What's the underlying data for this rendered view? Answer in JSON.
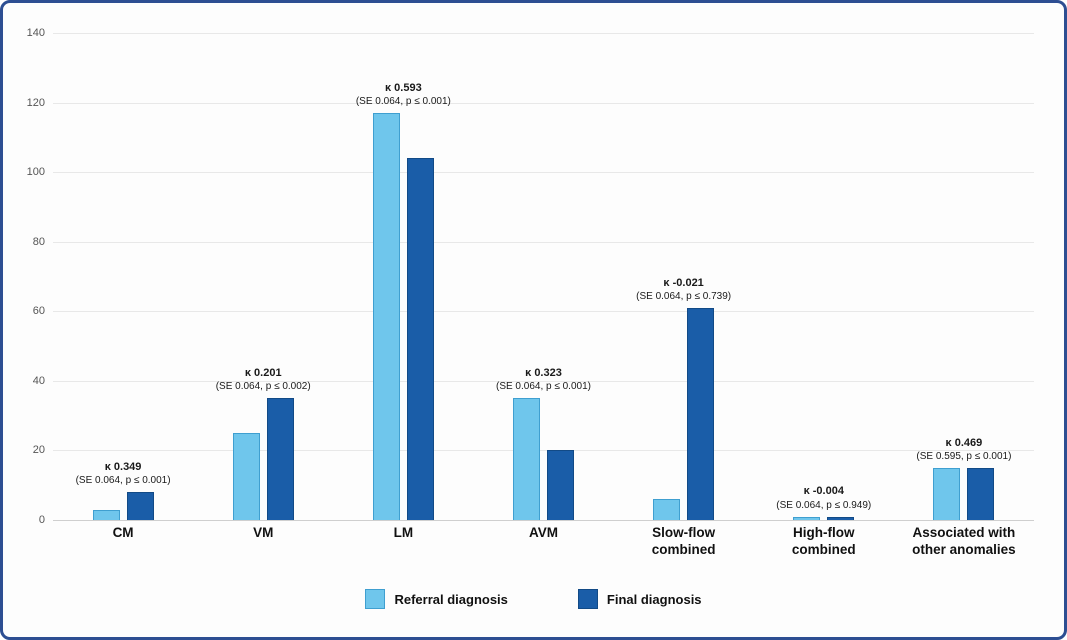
{
  "chart_data": {
    "type": "bar",
    "categories": [
      "CM",
      "VM",
      "LM",
      "AVM",
      "Slow-flow combined",
      "High-flow combined",
      "Associated with other anomalies"
    ],
    "series": [
      {
        "name": "Referral diagnosis",
        "color": "#6fc6ec",
        "border": "#3f9fd0",
        "values": [
          3,
          25,
          117,
          35,
          6,
          1,
          15
        ]
      },
      {
        "name": "Final diagnosis",
        "color": "#1a5da8",
        "border": "#124a86",
        "values": [
          8,
          35,
          104,
          20,
          61,
          1,
          15
        ]
      }
    ],
    "annotations": [
      {
        "kappa": "κ 0.349",
        "se": "(SE 0.064, p ≤ 0.001)"
      },
      {
        "kappa": "κ 0.201",
        "se": "(SE 0.064, p ≤ 0.002)"
      },
      {
        "kappa": "κ 0.593",
        "se": "(SE 0.064, p ≤ 0.001)"
      },
      {
        "kappa": "κ 0.323",
        "se": "(SE 0.064, p ≤ 0.001)"
      },
      {
        "kappa": "κ -0.021",
        "se": "(SE 0.064, p ≤ 0.739)"
      },
      {
        "kappa": "κ -0.004",
        "se": "(SE 0.064, p ≤ 0.949)"
      },
      {
        "kappa": "κ 0.469",
        "se": "(SE 0.595, p ≤ 0.001)"
      }
    ],
    "title": "",
    "xlabel": "",
    "ylabel": "",
    "ylim": [
      0,
      140
    ],
    "ytick_step": 20,
    "grid": true,
    "legend_position": "bottom",
    "frame_border_color": "#2d4e92"
  }
}
